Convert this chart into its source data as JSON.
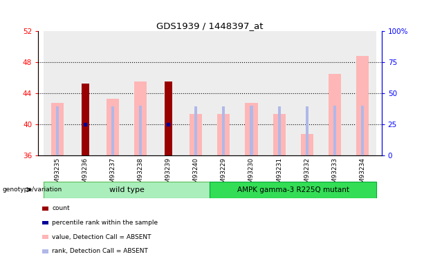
{
  "title": "GDS1939 / 1448397_at",
  "samples": [
    "GSM93235",
    "GSM93236",
    "GSM93237",
    "GSM93238",
    "GSM93239",
    "GSM93240",
    "GSM93229",
    "GSM93230",
    "GSM93231",
    "GSM93232",
    "GSM93233",
    "GSM93234"
  ],
  "count_values": [
    null,
    45.2,
    null,
    null,
    45.5,
    null,
    null,
    null,
    null,
    null,
    null,
    null
  ],
  "rank_values": [
    null,
    40.0,
    null,
    null,
    40.0,
    null,
    null,
    null,
    null,
    null,
    null,
    null
  ],
  "value_absent": [
    42.8,
    null,
    43.3,
    45.5,
    null,
    41.3,
    41.3,
    42.8,
    41.3,
    38.8,
    46.5,
    48.8
  ],
  "rank_absent": [
    39.4,
    null,
    39.4,
    40.0,
    null,
    39.4,
    39.2,
    39.8,
    39.4,
    39.2,
    40.0,
    40.2
  ],
  "ylim_left": [
    36,
    52
  ],
  "ylim_right": [
    0,
    100
  ],
  "yticks_left": [
    36,
    40,
    44,
    48,
    52
  ],
  "yticks_right": [
    0,
    25,
    50,
    75,
    100
  ],
  "grid_lines": [
    40,
    44,
    48
  ],
  "count_color": "#990000",
  "rank_color": "#000099",
  "value_absent_color": "#FFB6B6",
  "rank_absent_color": "#B0B8E8",
  "col_bg_color": "#D8D8D8",
  "bg_color": "#ffffff",
  "wt_color": "#AAEEBB",
  "mut_color": "#33DD55",
  "wt_border": "#55BB55",
  "mut_border": "#00AA33"
}
